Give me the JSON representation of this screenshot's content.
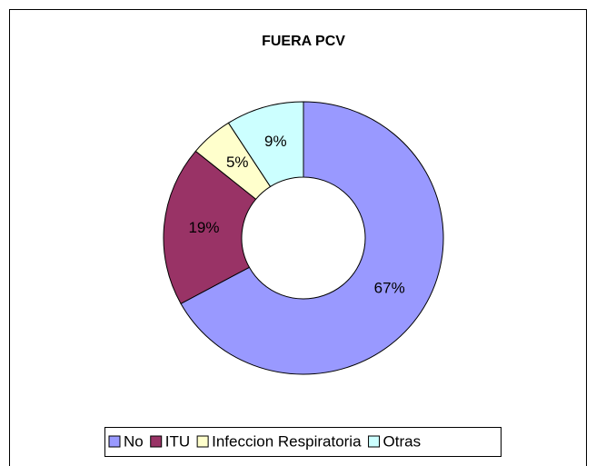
{
  "chart_data": {
    "type": "pie",
    "title": "FUERA PCV",
    "categories": [
      "No",
      "ITU",
      "Infeccion Respiratoria",
      "Otras"
    ],
    "values": [
      67,
      19,
      5,
      9
    ],
    "value_labels": [
      "67%",
      "19%",
      "5%",
      "9%"
    ],
    "colors": [
      "#9999ff",
      "#993366",
      "#ffffcc",
      "#ccffff"
    ],
    "legend": "bottom"
  }
}
